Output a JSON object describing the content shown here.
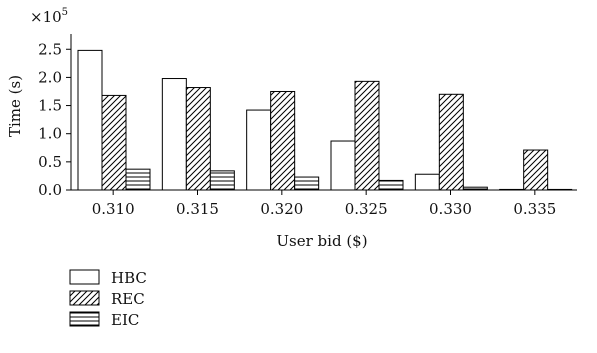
{
  "chart_data": {
    "type": "bar",
    "title": "",
    "xlabel": "User bid ($)",
    "ylabel": "Time (s)",
    "y_multiplier_label": "×10",
    "y_multiplier_exp": "5",
    "categories": [
      "0.310",
      "0.315",
      "0.320",
      "0.325",
      "0.330",
      "0.335"
    ],
    "series": [
      {
        "name": "HBC",
        "fill": "plain",
        "values": [
          2.48,
          1.98,
          1.42,
          0.87,
          0.28,
          0.01
        ]
      },
      {
        "name": "REC",
        "fill": "diagonal",
        "values": [
          1.68,
          1.82,
          1.75,
          1.93,
          1.7,
          0.71
        ]
      },
      {
        "name": "EIC",
        "fill": "horizontal",
        "values": [
          0.37,
          0.34,
          0.23,
          0.17,
          0.05,
          0.01
        ]
      }
    ],
    "ylim": [
      0,
      2.7
    ],
    "yticks": [
      "0.0",
      "0.5",
      "1.0",
      "1.5",
      "2.0",
      "2.5"
    ],
    "grid": false,
    "legend_position": "bottom-left"
  }
}
